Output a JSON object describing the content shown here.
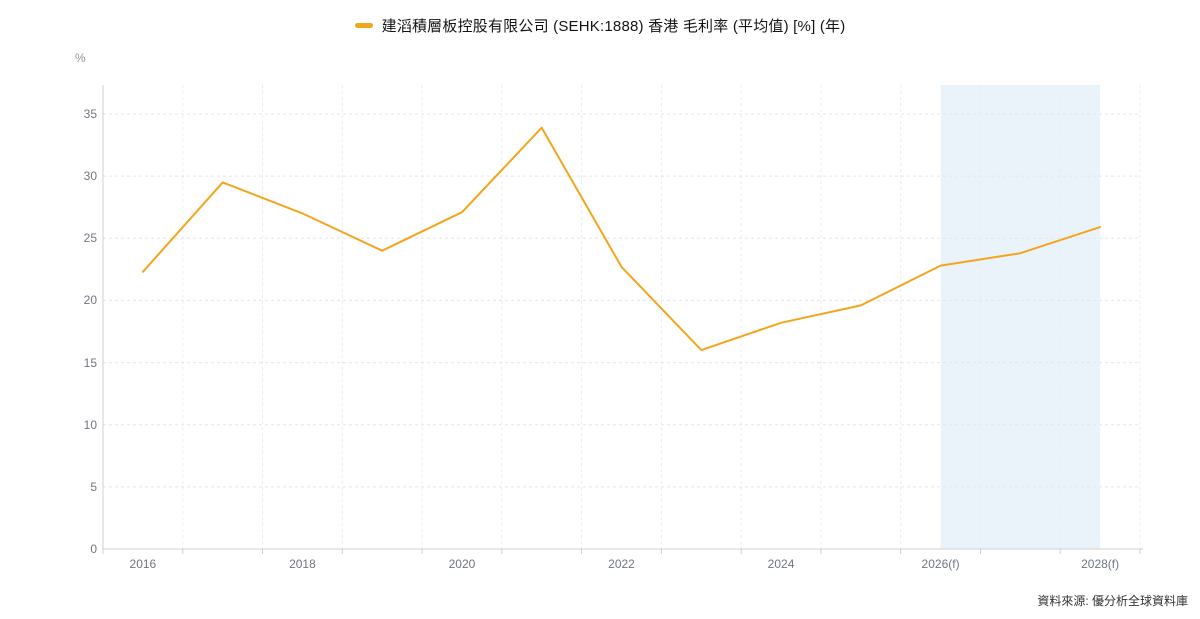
{
  "legend": {
    "label": "建滔積層板控股有限公司 (SEHK:1888) 香港 毛利率 (平均值) [%] (年)"
  },
  "source": {
    "text": "資料來源: 優分析全球資料庫"
  },
  "colors": {
    "line": "#F3A51E",
    "forecast_band": "#EBF3FA",
    "hgrid": "#E5E5E5",
    "vgrid": "#E8EDF3",
    "axis": "#CCD0D6",
    "tick_label": "#71767F",
    "unit_label": "#8F95A3",
    "title_text": "#141414",
    "source_text": "#333333"
  },
  "chart_data": {
    "type": "line",
    "title": "建滔積層板控股有限公司 (SEHK:1888) 香港 毛利率 (平均值) [%] (年)",
    "series_name": "毛利率 (平均值)",
    "ylabel": "%",
    "xlabel": "",
    "categories": [
      "2016",
      "2017",
      "2018",
      "2019",
      "2020",
      "2021",
      "2022",
      "2023",
      "2024",
      "2025",
      "2026(f)",
      "2027(f)",
      "2028(f)"
    ],
    "values": [
      22.3,
      29.5,
      27.0,
      24.0,
      27.1,
      33.9,
      22.7,
      16.0,
      18.2,
      19.6,
      22.8,
      23.8,
      25.9
    ],
    "ylim": [
      0,
      35
    ],
    "yticks": [
      0,
      5,
      10,
      15,
      20,
      25,
      30,
      35
    ],
    "x_axis_labels": [
      {
        "index": 0,
        "label": "2016"
      },
      {
        "index": 2,
        "label": "2018"
      },
      {
        "index": 4,
        "label": "2020"
      },
      {
        "index": 6,
        "label": "2022"
      },
      {
        "index": 8,
        "label": "2024"
      },
      {
        "index": 10,
        "label": "2026(f)"
      },
      {
        "index": 12,
        "label": "2028(f)"
      }
    ],
    "forecast_region": {
      "from_index": 10,
      "to_index": 12
    },
    "grid": true,
    "grid_style": "dashed",
    "legend_position": "top-center"
  }
}
